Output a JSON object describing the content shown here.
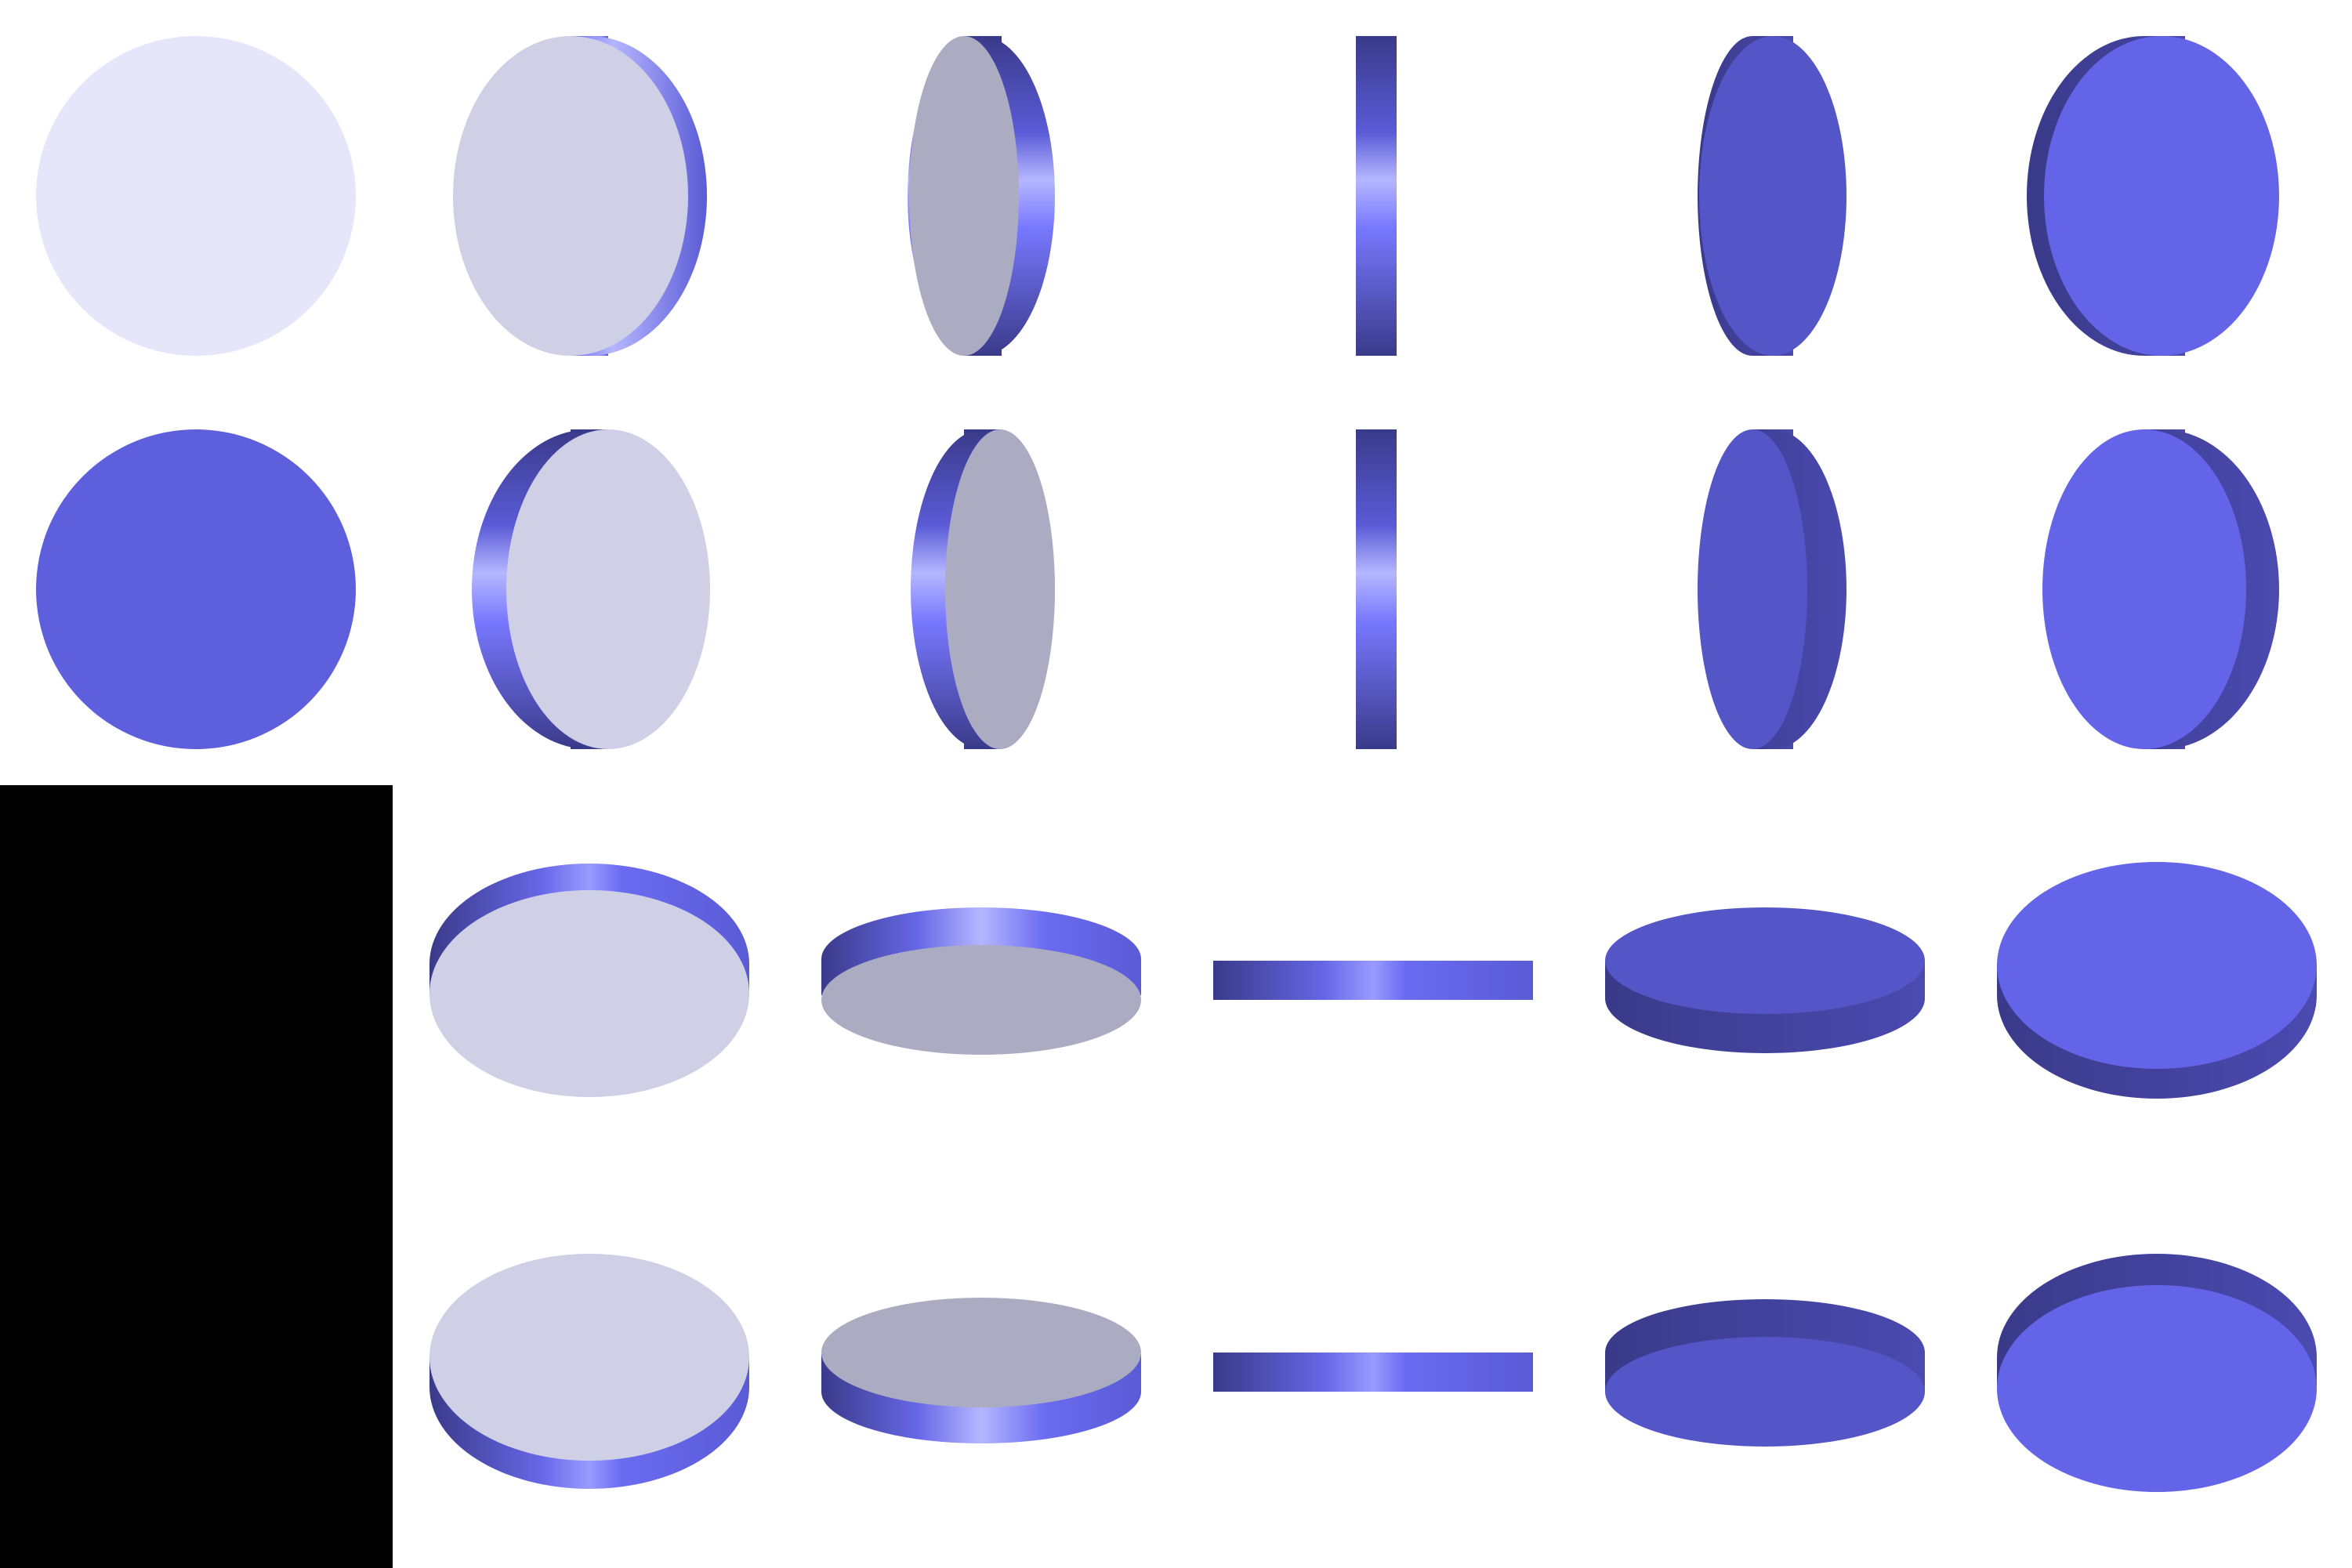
{
  "sprite_sheet": {
    "background": "#ffffff",
    "empty_cell_fill": "#000000",
    "rows": [
      {
        "name": "spin-vertical-front",
        "frames": [
          {
            "name": "face-front",
            "face": "#e6e6fb",
            "rim_dark": "#3a3a8a",
            "rim_light": "#7878ff"
          },
          {
            "name": "turn-1",
            "face": "#cfd0e6",
            "rim_dark": "#3a3a8a",
            "rim_light": "#7878ff"
          },
          {
            "name": "turn-2",
            "face": "#abacc2",
            "rim_dark": "#3a3a8a",
            "rim_light": "#b5b6ff"
          },
          {
            "name": "edge-on",
            "face": "#5a5bd6",
            "rim_dark": "#3a3a8a",
            "rim_light": "#9a9bff"
          },
          {
            "name": "turn-3",
            "face": "#5455c6",
            "rim_dark": "#3a3a8a",
            "rim_light": "#5a5bd6"
          },
          {
            "name": "turn-4",
            "face": "#6364e8",
            "rim_dark": "#3a3a8a",
            "rim_light": "#5a5bd6"
          }
        ]
      },
      {
        "name": "spin-vertical-back",
        "frames": [
          {
            "name": "face-back",
            "face": "#5e5fdd",
            "rim_dark": "#3a3a8a",
            "rim_light": "#7878ff"
          },
          {
            "name": "turn-1",
            "face": "#cfd0e6",
            "rim_dark": "#3a3a8a",
            "rim_light": "#7878ff"
          },
          {
            "name": "turn-2",
            "face": "#abacc2",
            "rim_dark": "#3a3a8a",
            "rim_light": "#b5b6ff"
          },
          {
            "name": "edge-on",
            "face": "#5a5bd6",
            "rim_dark": "#3a3a8a",
            "rim_light": "#9a9bff"
          },
          {
            "name": "turn-3",
            "face": "#5455c6",
            "rim_dark": "#3a3a8a",
            "rim_light": "#5a5bd6"
          },
          {
            "name": "turn-4",
            "face": "#6364e8",
            "rim_dark": "#3a3a8a",
            "rim_light": "#5a5bd6"
          }
        ]
      },
      {
        "name": "spin-horizontal-top",
        "frames": [
          {
            "name": "empty",
            "face": "#000000"
          },
          {
            "name": "tilt-1",
            "face": "#cfd0e6",
            "rim_dark": "#3a3a8a",
            "rim_light": "#7878ff"
          },
          {
            "name": "tilt-2",
            "face": "#abacc2",
            "rim_dark": "#3a3a8a",
            "rim_light": "#b5b6ff"
          },
          {
            "name": "edge-on",
            "face": "#5a5bd6",
            "rim_dark": "#3a3a8a",
            "rim_light": "#9a9bff"
          },
          {
            "name": "tilt-3",
            "face": "#5455c6",
            "rim_dark": "#3a3a8a",
            "rim_light": "#5a5bd6"
          },
          {
            "name": "tilt-4",
            "face": "#6364e8",
            "rim_dark": "#3a3a8a",
            "rim_light": "#5a5bd6"
          }
        ]
      },
      {
        "name": "spin-horizontal-bottom",
        "frames": [
          {
            "name": "empty",
            "face": "#000000"
          },
          {
            "name": "tilt-1",
            "face": "#cfd0e6",
            "rim_dark": "#3a3a8a",
            "rim_light": "#7878ff"
          },
          {
            "name": "tilt-2",
            "face": "#abacc2",
            "rim_dark": "#3a3a8a",
            "rim_light": "#b5b6ff"
          },
          {
            "name": "edge-on",
            "face": "#5a5bd6",
            "rim_dark": "#3a3a8a",
            "rim_light": "#9a9bff"
          },
          {
            "name": "tilt-3",
            "face": "#5455c6",
            "rim_dark": "#3a3a8a",
            "rim_light": "#5a5bd6"
          },
          {
            "name": "tilt-4",
            "face": "#6364e8",
            "rim_dark": "#3a3a8a",
            "rim_light": "#5a5bd6"
          }
        ]
      }
    ]
  }
}
